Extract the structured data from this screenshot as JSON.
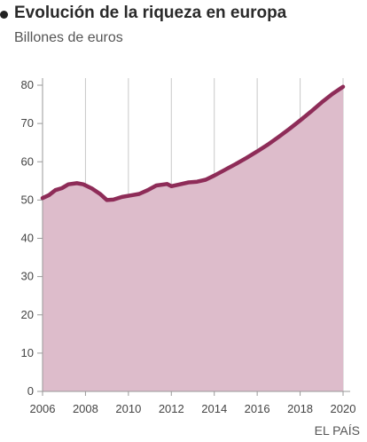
{
  "header": {
    "bullet_icon": "bullet-dot-icon",
    "title": "Evolución de la riqueza en europa",
    "subtitle": "Billones de euros"
  },
  "source": "EL PAÍS",
  "colors": {
    "line": "#8e2c58",
    "area": "#ddbccb",
    "bullet": "#222222",
    "axis": "#999999",
    "grid": "#c8c8c8"
  },
  "chart_data": {
    "type": "area",
    "title": "Evolución de la riqueza en europa",
    "subtitle": "Billones de euros",
    "xlabel": "",
    "ylabel": "",
    "xlim": [
      2006,
      2020
    ],
    "ylim": [
      0,
      80
    ],
    "xticks": [
      2006,
      2008,
      2010,
      2012,
      2014,
      2016,
      2018,
      2020
    ],
    "yticks": [
      0,
      10,
      20,
      30,
      40,
      50,
      60,
      70,
      80
    ],
    "grid": "vertical",
    "legend": "none",
    "series": [
      {
        "values": [
          [
            2006.0,
            50.5
          ],
          [
            2006.3,
            51.3
          ],
          [
            2006.6,
            52.6
          ],
          [
            2006.9,
            53.1
          ],
          [
            2007.2,
            54.1
          ],
          [
            2007.6,
            54.4
          ],
          [
            2007.9,
            54.1
          ],
          [
            2008.3,
            53.0
          ],
          [
            2008.7,
            51.5
          ],
          [
            2009.0,
            50.0
          ],
          [
            2009.3,
            50.1
          ],
          [
            2009.7,
            50.8
          ],
          [
            2010.1,
            51.2
          ],
          [
            2010.5,
            51.6
          ],
          [
            2010.9,
            52.6
          ],
          [
            2011.3,
            53.8
          ],
          [
            2011.8,
            54.2
          ],
          [
            2012.0,
            53.6
          ],
          [
            2012.4,
            54.1
          ],
          [
            2012.8,
            54.6
          ],
          [
            2013.2,
            54.8
          ],
          [
            2013.6,
            55.3
          ],
          [
            2014.0,
            56.4
          ],
          [
            2014.5,
            57.9
          ],
          [
            2015.0,
            59.4
          ],
          [
            2015.5,
            61.0
          ],
          [
            2016.0,
            62.7
          ],
          [
            2016.5,
            64.5
          ],
          [
            2017.0,
            66.5
          ],
          [
            2017.5,
            68.6
          ],
          [
            2018.0,
            70.8
          ],
          [
            2018.5,
            73.1
          ],
          [
            2019.0,
            75.5
          ],
          [
            2019.5,
            77.7
          ],
          [
            2020.0,
            79.6
          ]
        ]
      }
    ]
  }
}
